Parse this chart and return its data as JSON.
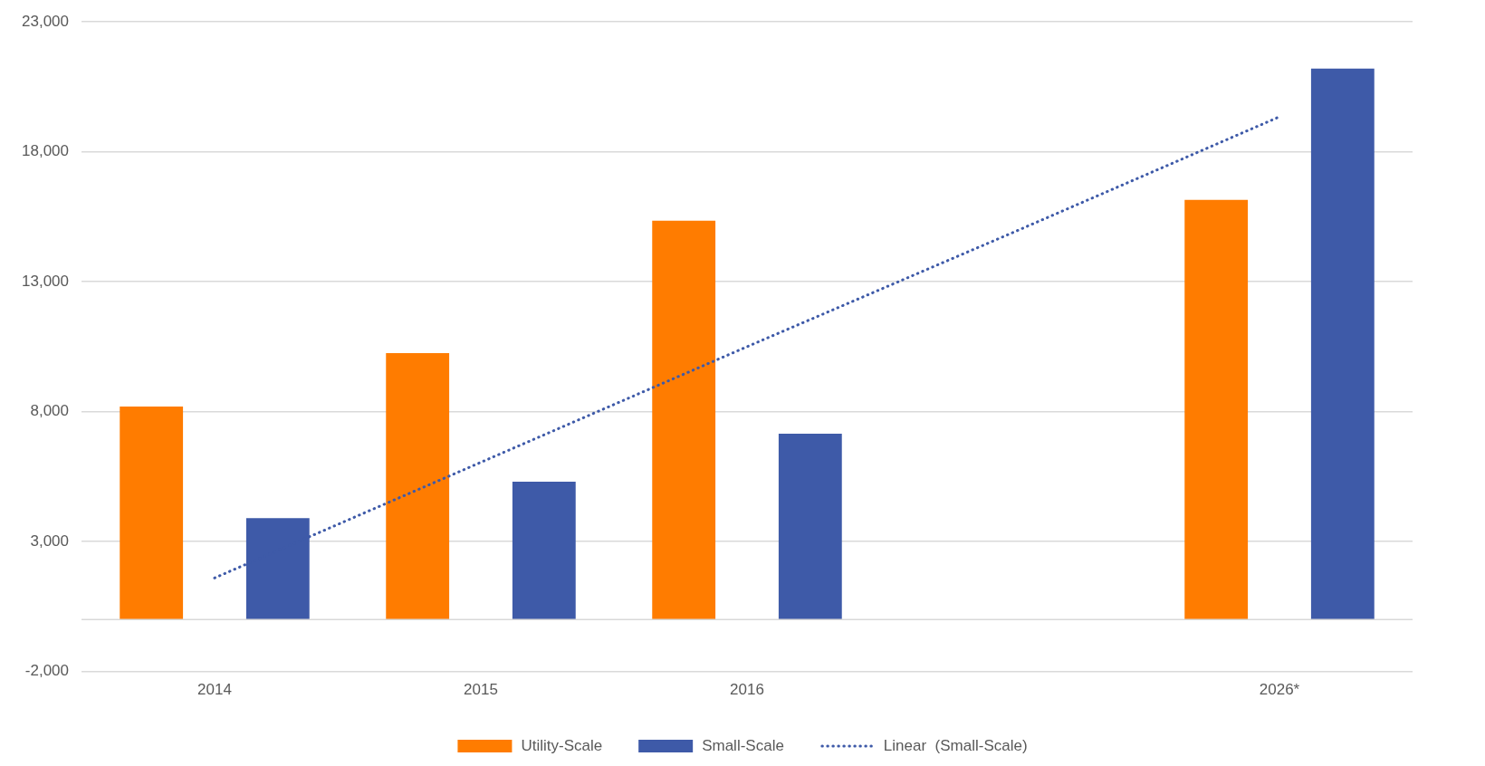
{
  "chart_data": {
    "type": "bar",
    "categories": [
      "2014",
      "2015",
      "2016",
      null,
      "2026*"
    ],
    "series": [
      {
        "name": "Utility-Scale",
        "color": "#ff7c00",
        "values": [
          8200,
          10250,
          15350,
          null,
          16150
        ]
      },
      {
        "name": "Small-Scale",
        "color": "#3e5aa8",
        "values": [
          3900,
          5300,
          7150,
          null,
          21200
        ]
      },
      {
        "name": "Linear  (Small-Scale)",
        "type": "line",
        "color": "#3e5aa8",
        "line_style": "dotted",
        "marker": "none",
        "values": [
          1600,
          6050,
          10500,
          14900,
          19350
        ]
      }
    ],
    "ylim": [
      -2000,
      23000
    ],
    "yticks": [
      {
        "value": -2000,
        "label": "-2,000"
      },
      {
        "value": 3000,
        "label": "3,000"
      },
      {
        "value": 8000,
        "label": "8,000"
      },
      {
        "value": 13000,
        "label": "13,000"
      },
      {
        "value": 18000,
        "label": "18,000"
      },
      {
        "value": 23000,
        "label": "23,000"
      }
    ],
    "grid": "y",
    "legend": "bottom"
  }
}
